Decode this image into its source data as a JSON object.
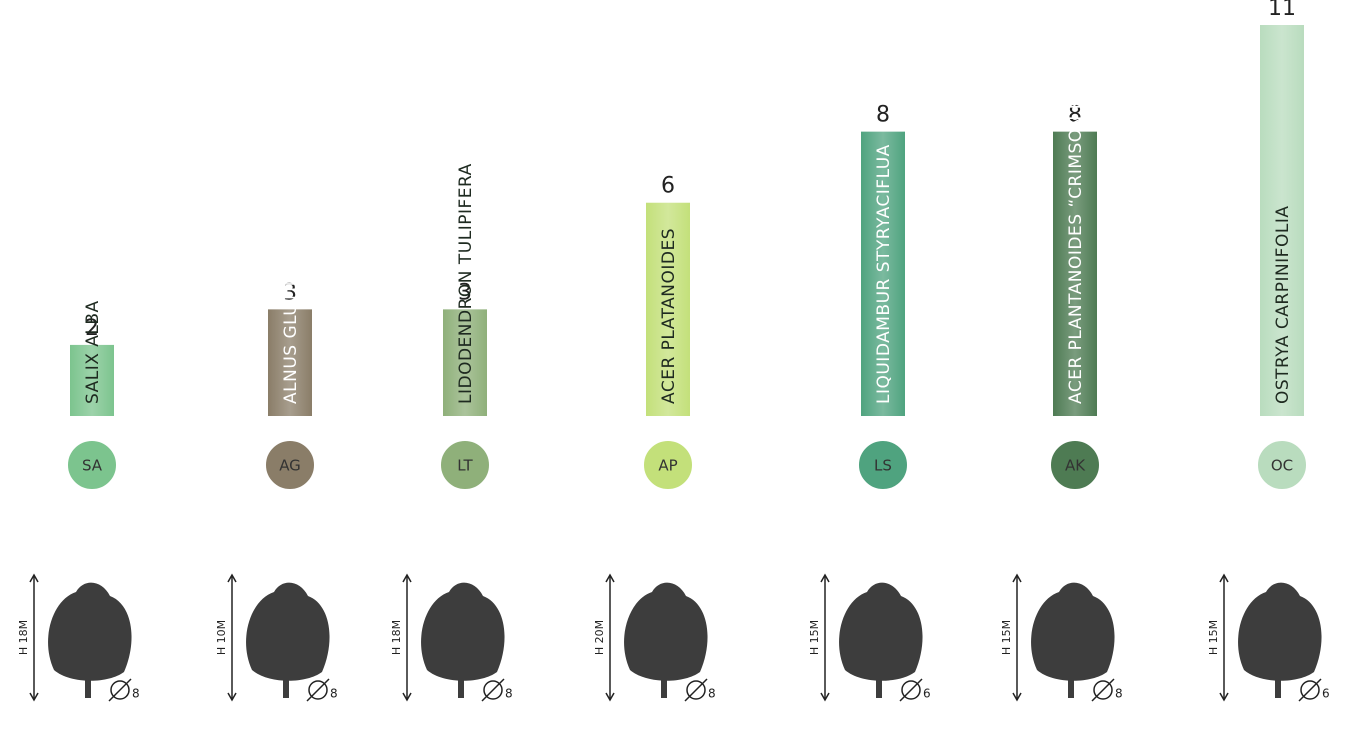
{
  "chart_data": {
    "type": "bar",
    "categories": [
      "SALIX ALBA",
      "ALNUS GLUTINOSA",
      "LIDODENDRON TULIPIFERA",
      "ACER PLATANOIDES",
      "LIQUIDAMBUR STYRYACIFLUA",
      "ACER PLANTANOIDES “CRIMSON KING”",
      "OSTRYA CARPINIFOLIA"
    ],
    "values": [
      2,
      3,
      3,
      6,
      8,
      8,
      11
    ],
    "colors": [
      "#7cc48e",
      "#8a7d68",
      "#8fb07a",
      "#c3e07a",
      "#4fa37f",
      "#4e7b53",
      "#b9dcbe"
    ],
    "text_colors": [
      "#1e2a20",
      "#ffffff",
      "#1e2a20",
      "#1e2a20",
      "#ffffff",
      "#ffffff",
      "#1e2a20"
    ],
    "abbreviations": [
      "SA",
      "AG",
      "LT",
      "AP",
      "LS",
      "AK",
      "OC"
    ],
    "height_labels": [
      "H 18M",
      "H 10M",
      "H 18M",
      "H 20M",
      "H 15M",
      "H 15M",
      "H 15M"
    ],
    "diameters": [
      8,
      8,
      8,
      8,
      6,
      8,
      6
    ]
  }
}
